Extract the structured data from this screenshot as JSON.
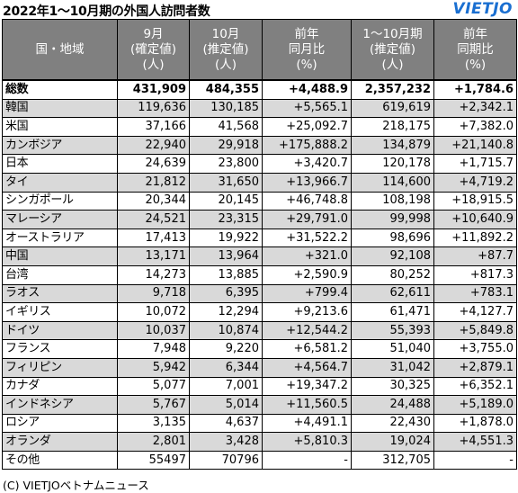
{
  "title": "2022年1〜10月期の外国人訪問者数",
  "logo": "VIETJO",
  "headers": {
    "col0": "国・地域",
    "col1": [
      "9月",
      "(確定値)",
      "(人)"
    ],
    "col2": [
      "10月",
      "(推定値)",
      "(人)"
    ],
    "col3": [
      "前年",
      "同月比",
      "(%)"
    ],
    "col4": [
      "1〜10月期",
      "(推定値)",
      "(人)"
    ],
    "col5": [
      "前年",
      "同期比",
      "(%)"
    ]
  },
  "rows": [
    {
      "name": "総数",
      "sep": "431,909",
      "oct": "484,355",
      "yoy_month": "+4,488.9",
      "ytd": "2,357,232",
      "yoy_period": "+1,784.6"
    },
    {
      "name": "韓国",
      "sep": "119,636",
      "oct": "130,185",
      "yoy_month": "+5,565.1",
      "ytd": "619,619",
      "yoy_period": "+2,342.1"
    },
    {
      "name": "米国",
      "sep": "37,166",
      "oct": "41,568",
      "yoy_month": "+25,092.7",
      "ytd": "218,175",
      "yoy_period": "+7,382.0"
    },
    {
      "name": "カンボジア",
      "sep": "22,940",
      "oct": "29,918",
      "yoy_month": "+175,888.2",
      "ytd": "134,879",
      "yoy_period": "+21,140.8"
    },
    {
      "name": "日本",
      "sep": "24,639",
      "oct": "23,800",
      "yoy_month": "+3,420.7",
      "ytd": "120,178",
      "yoy_period": "+1,715.7"
    },
    {
      "name": "タイ",
      "sep": "21,812",
      "oct": "31,650",
      "yoy_month": "+13,966.7",
      "ytd": "114,600",
      "yoy_period": "+4,719.2"
    },
    {
      "name": "シンガポール",
      "sep": "20,344",
      "oct": "20,145",
      "yoy_month": "+46,748.8",
      "ytd": "108,198",
      "yoy_period": "+18,915.5"
    },
    {
      "name": "マレーシア",
      "sep": "24,521",
      "oct": "23,315",
      "yoy_month": "+29,791.0",
      "ytd": "99,998",
      "yoy_period": "+10,640.9"
    },
    {
      "name": "オーストラリア",
      "sep": "17,413",
      "oct": "19,922",
      "yoy_month": "+31,522.2",
      "ytd": "98,696",
      "yoy_period": "+11,892.2"
    },
    {
      "name": "中国",
      "sep": "13,171",
      "oct": "13,964",
      "yoy_month": "+321.0",
      "ytd": "92,108",
      "yoy_period": "+87.7"
    },
    {
      "name": "台湾",
      "sep": "14,273",
      "oct": "13,885",
      "yoy_month": "+2,590.9",
      "ytd": "80,252",
      "yoy_period": "+817.3"
    },
    {
      "name": "ラオス",
      "sep": "9,718",
      "oct": "6,395",
      "yoy_month": "+799.4",
      "ytd": "62,611",
      "yoy_period": "+783.1"
    },
    {
      "name": "イギリス",
      "sep": "10,072",
      "oct": "12,294",
      "yoy_month": "+9,213.6",
      "ytd": "61,471",
      "yoy_period": "+4,127.7"
    },
    {
      "name": "ドイツ",
      "sep": "10,037",
      "oct": "10,874",
      "yoy_month": "+12,544.2",
      "ytd": "55,393",
      "yoy_period": "+5,849.8"
    },
    {
      "name": "フランス",
      "sep": "7,948",
      "oct": "9,220",
      "yoy_month": "+6,581.2",
      "ytd": "51,040",
      "yoy_period": "+3,755.0"
    },
    {
      "name": "フィリピン",
      "sep": "5,942",
      "oct": "6,344",
      "yoy_month": "+4,564.7",
      "ytd": "31,042",
      "yoy_period": "+2,879.1"
    },
    {
      "name": "カナダ",
      "sep": "5,077",
      "oct": "7,001",
      "yoy_month": "+19,347.2",
      "ytd": "30,325",
      "yoy_period": "+6,352.1"
    },
    {
      "name": "インドネシア",
      "sep": "5,767",
      "oct": "5,014",
      "yoy_month": "+11,560.5",
      "ytd": "24,488",
      "yoy_period": "+5,189.0"
    },
    {
      "name": "ロシア",
      "sep": "3,135",
      "oct": "4,637",
      "yoy_month": "+4,491.1",
      "ytd": "22,430",
      "yoy_period": "+1,878.0"
    },
    {
      "name": "オランダ",
      "sep": "2,801",
      "oct": "3,428",
      "yoy_month": "+5,810.3",
      "ytd": "19,024",
      "yoy_period": "+4,551.3"
    },
    {
      "name": "その他",
      "sep": "55497",
      "oct": "70796",
      "yoy_month": "-",
      "ytd": "312,705",
      "yoy_period": "-"
    }
  ],
  "credit": "(C) VIETJOベトナムニュース",
  "colors": {
    "header_bg": "#808080",
    "header_text": "#ffffff",
    "stripe": "#d9d9d9",
    "logo": "#1a6fd1"
  }
}
